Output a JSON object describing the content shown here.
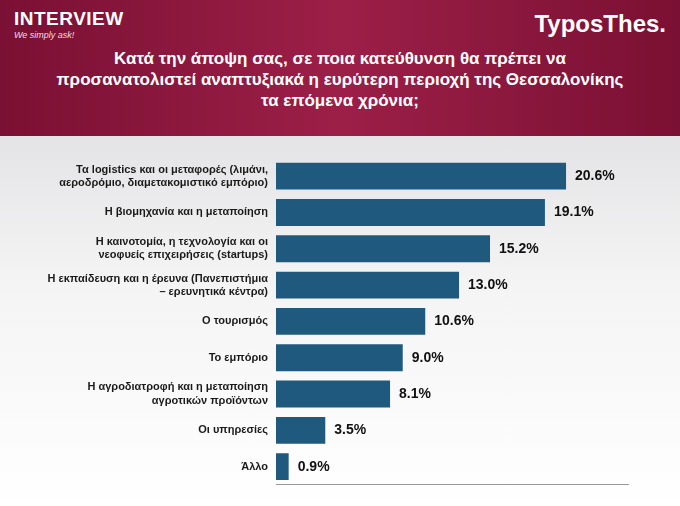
{
  "chart_data": {
    "type": "bar",
    "title": "Κατά την άποψη σας, σε ποια κατεύθυνση θα πρέπει να προσανατολιστεί αναπτυξιακά η ευρύτερη περιοχή της Θεσσαλονίκης τα επόμενα χρόνια;",
    "annotations": [
      "INTERVIEW",
      "We simply ask!",
      "TyposThes."
    ],
    "categories": [
      "Τα logistics και οι μεταφορές (λιμάνι, αεροδρόμιο, διαμετακομιστικό εμπόριο)",
      "Η βιομηχανία και η μεταποίηση",
      "Η καινοτομία, η τεχνολογία και οι νεοφυείς επιχειρήσεις (startups)",
      "Η εκπαίδευση και η έρευνα (Πανεπιστήμια – ερευνητικά κέντρα)",
      "Ο τουρισμός",
      "Το εμπόριο",
      "Η αγροδιατροφή και η μεταποίηση αγροτικών προϊόντων",
      "Οι υπηρεσίες",
      "Άλλο"
    ],
    "values": [
      20.6,
      19.1,
      15.2,
      13.0,
      10.6,
      9.0,
      8.1,
      3.5,
      0.9
    ],
    "value_labels": [
      "20.6%",
      "19.1%",
      "15.2%",
      "13.0%",
      "10.6%",
      "9.0%",
      "8.1%",
      "3.5%",
      "0.9%"
    ],
    "color": "#1f5a7e",
    "orientation": "horizontal",
    "xlim": [
      0,
      25
    ],
    "grid": false,
    "data_labels": true,
    "tick_labels": "y"
  }
}
